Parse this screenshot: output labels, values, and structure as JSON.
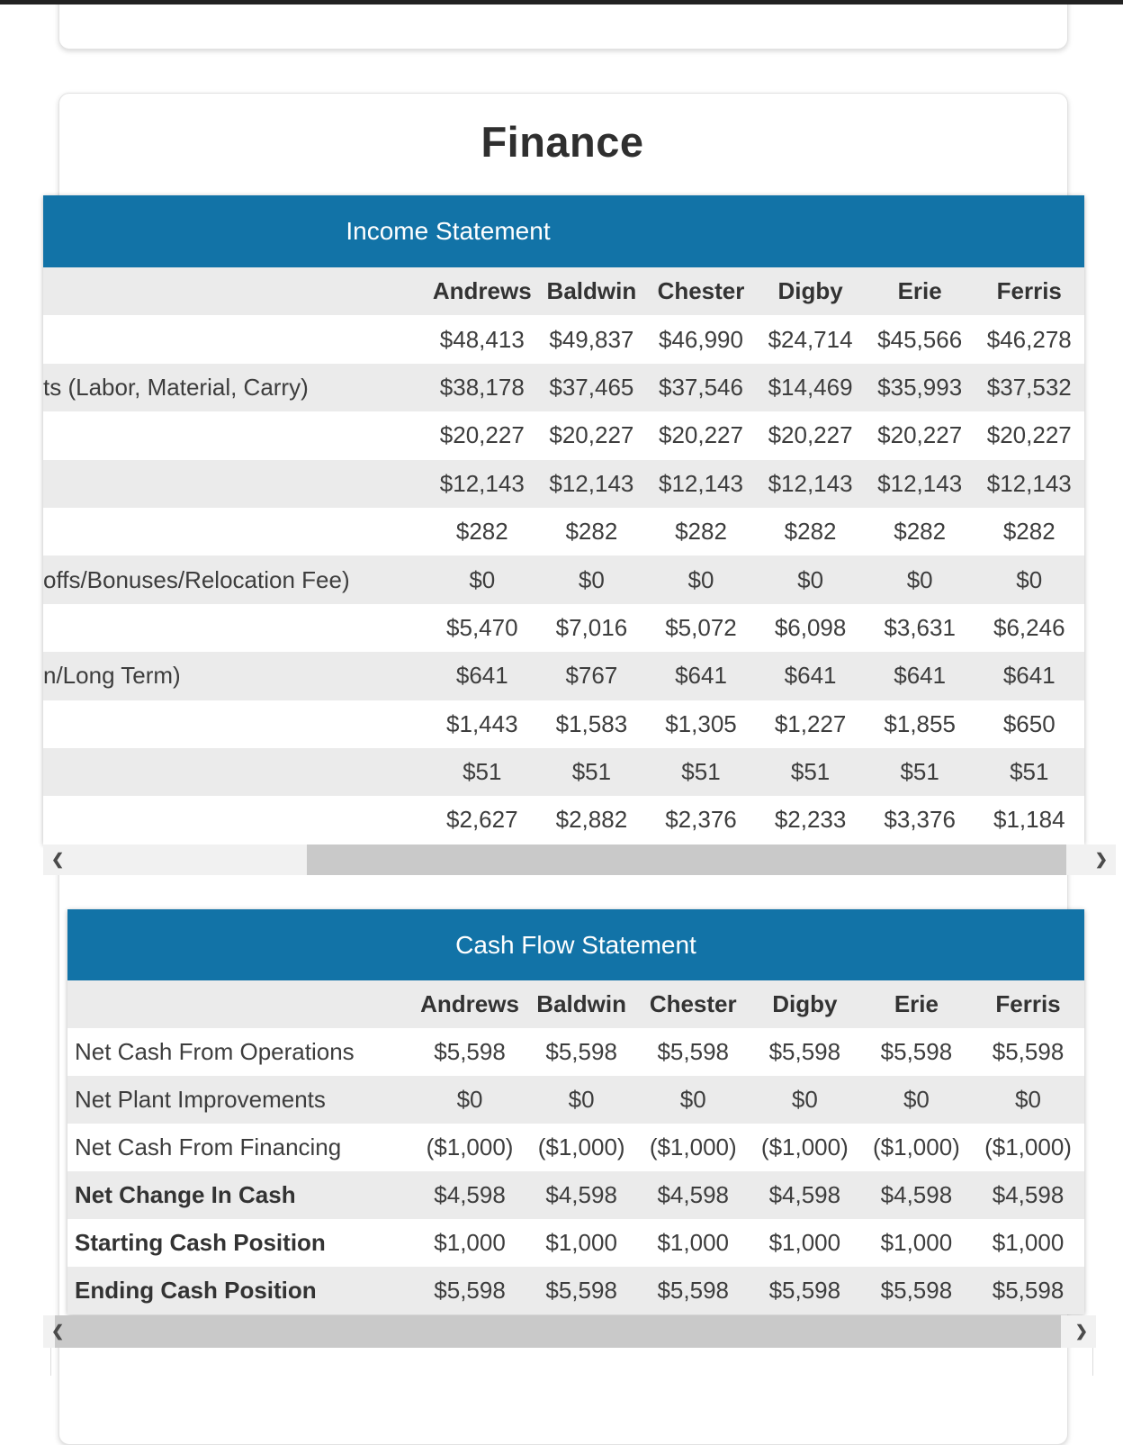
{
  "page": {
    "title": "Finance"
  },
  "income_statement": {
    "title": "Income Statement",
    "columns": [
      "Andrews",
      "Baldwin",
      "Chester",
      "Digby",
      "Erie",
      "Ferris"
    ],
    "rows": [
      {
        "label": "",
        "values": [
          "$48,413",
          "$49,837",
          "$46,990",
          "$24,714",
          "$45,566",
          "$46,278"
        ]
      },
      {
        "label": "ts (Labor, Material, Carry)",
        "values": [
          "$38,178",
          "$37,465",
          "$37,546",
          "$14,469",
          "$35,993",
          "$37,532"
        ]
      },
      {
        "label": "",
        "values": [
          "$20,227",
          "$20,227",
          "$20,227",
          "$20,227",
          "$20,227",
          "$20,227"
        ]
      },
      {
        "label": "",
        "values": [
          "$12,143",
          "$12,143",
          "$12,143",
          "$12,143",
          "$12,143",
          "$12,143"
        ]
      },
      {
        "label": "",
        "values": [
          "$282",
          "$282",
          "$282",
          "$282",
          "$282",
          "$282"
        ]
      },
      {
        "label": "offs/Bonuses/Relocation Fee)",
        "values": [
          "$0",
          "$0",
          "$0",
          "$0",
          "$0",
          "$0"
        ]
      },
      {
        "label": "",
        "values": [
          "$5,470",
          "$7,016",
          "$5,072",
          "$6,098",
          "$3,631",
          "$6,246"
        ]
      },
      {
        "label": "n/Long Term)",
        "values": [
          "$641",
          "$767",
          "$641",
          "$641",
          "$641",
          "$641"
        ]
      },
      {
        "label": "",
        "values": [
          "$1,443",
          "$1,583",
          "$1,305",
          "$1,227",
          "$1,855",
          "$650"
        ]
      },
      {
        "label": "",
        "values": [
          "$51",
          "$51",
          "$51",
          "$51",
          "$51",
          "$51"
        ]
      },
      {
        "label": "",
        "values": [
          "$2,627",
          "$2,882",
          "$2,376",
          "$2,233",
          "$3,376",
          "$1,184"
        ]
      }
    ]
  },
  "cash_flow_statement": {
    "title": "Cash Flow Statement",
    "columns": [
      "Andrews",
      "Baldwin",
      "Chester",
      "Digby",
      "Erie",
      "Ferris"
    ],
    "rows": [
      {
        "label": "Net Cash From Operations",
        "values": [
          "$5,598",
          "$5,598",
          "$5,598",
          "$5,598",
          "$5,598",
          "$5,598"
        ]
      },
      {
        "label": "Net Plant Improvements",
        "values": [
          "$0",
          "$0",
          "$0",
          "$0",
          "$0",
          "$0"
        ]
      },
      {
        "label": "Net Cash From Financing",
        "values": [
          "($1,000)",
          "($1,000)",
          "($1,000)",
          "($1,000)",
          "($1,000)",
          "($1,000)"
        ]
      },
      {
        "label": "Net Change In Cash",
        "values": [
          "$4,598",
          "$4,598",
          "$4,598",
          "$4,598",
          "$4,598",
          "$4,598"
        ]
      },
      {
        "label": "Starting Cash Position",
        "values": [
          "$1,000",
          "$1,000",
          "$1,000",
          "$1,000",
          "$1,000",
          "$1,000"
        ]
      },
      {
        "label": "Ending Cash Position",
        "values": [
          "$5,598",
          "$5,598",
          "$5,598",
          "$5,598",
          "$5,598",
          "$5,598"
        ]
      }
    ]
  },
  "scrollbar": {
    "left_arrow": "❮",
    "right_arrow": "❯"
  },
  "colors": {
    "header_blue": "#1273a7",
    "stripe_gray": "#ebebeb",
    "top_bar": "#222222",
    "scroll_track": "#f1f1f1",
    "scroll_thumb": "#c9c9c9"
  }
}
